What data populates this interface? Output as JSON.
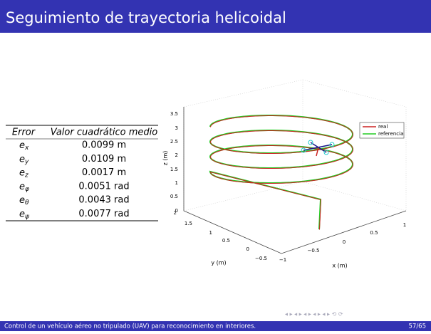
{
  "header": {
    "title": "Seguimiento de trayectoria helicoidal"
  },
  "table": {
    "columns": [
      "Error",
      "Valor cuadrático medio"
    ],
    "rows": [
      {
        "symbol": "e",
        "subscript": "x",
        "value": "0.0099 m"
      },
      {
        "symbol": "e",
        "subscript": "y",
        "value": "0.0109 m"
      },
      {
        "symbol": "e",
        "subscript": "z",
        "value": "0.0017 m"
      },
      {
        "symbol": "e",
        "subscript": "φ",
        "value": "0.0051 rad"
      },
      {
        "symbol": "e",
        "subscript": "θ",
        "value": "0.0043 rad"
      },
      {
        "symbol": "e",
        "subscript": "ψ",
        "value": "0.0077 rad"
      }
    ]
  },
  "figure": {
    "zlabel": "z (m)",
    "ylabel": "y (m)",
    "xlabel": "x (m)",
    "zticks": [
      "0",
      "0.5",
      "1",
      "1.5",
      "2",
      "2.5",
      "3",
      "3.5"
    ],
    "yticks": [
      "2",
      "1.5",
      "1",
      "0.5",
      "0",
      "−0.5"
    ],
    "xticks": [
      "−1",
      "−0.5",
      "0",
      "0.5",
      "1"
    ],
    "legend": [
      "real",
      "referencia"
    ]
  },
  "footer": {
    "text": "Control de un vehículo aéreo no tripulado (UAV) para reconocimiento en interiores.",
    "page": "57/65"
  }
}
